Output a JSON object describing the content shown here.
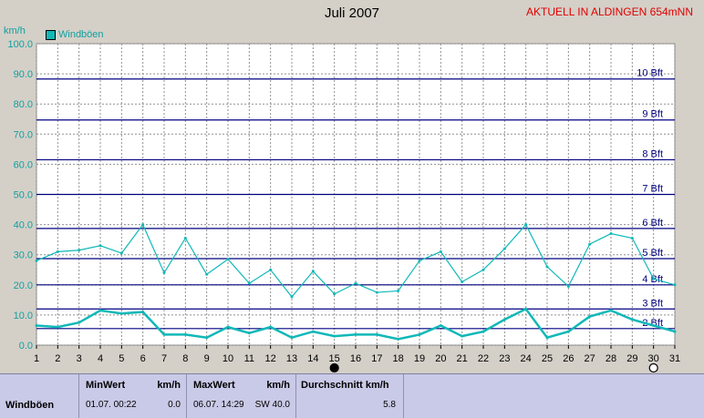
{
  "chart_data": {
    "type": "line",
    "title": "Juli 2007",
    "station": "AKTUELL IN ALDINGEN 654mNN",
    "ylabel": "km/h",
    "ylim": [
      0,
      100
    ],
    "yticks": [
      "0.0",
      "10.0",
      "20.0",
      "30.0",
      "40.0",
      "50.0",
      "60.0",
      "70.0",
      "80.0",
      "90.0",
      "100.0"
    ],
    "x": [
      1,
      2,
      3,
      4,
      5,
      6,
      7,
      8,
      9,
      10,
      11,
      12,
      13,
      14,
      15,
      16,
      17,
      18,
      19,
      20,
      21,
      22,
      23,
      24,
      25,
      26,
      27,
      28,
      29,
      30,
      31
    ],
    "xticks": [
      "1",
      "2",
      "3",
      "4",
      "5",
      "6",
      "7",
      "8",
      "9",
      "10",
      "11",
      "12",
      "13",
      "14",
      "15",
      "16",
      "17",
      "18",
      "19",
      "20",
      "21",
      "22",
      "23",
      "24",
      "25",
      "26",
      "27",
      "28",
      "29",
      "30",
      "31"
    ],
    "legend": [
      "Windböen"
    ],
    "series": [
      {
        "name": "Windböen",
        "color": "#10b8b8",
        "values": [
          28,
          31,
          31.5,
          33,
          30.5,
          40,
          24,
          35.5,
          23.5,
          28.5,
          20.5,
          25,
          16,
          24.5,
          17,
          20.5,
          17.5,
          18,
          28,
          31,
          21,
          25,
          32,
          40,
          26,
          19.5,
          33.5,
          37,
          35.5,
          22,
          20
        ]
      },
      {
        "color": "#10b8b8",
        "thick": true,
        "values": [
          6.5,
          6,
          7.5,
          11.5,
          10.5,
          11,
          3.5,
          3.5,
          2.5,
          6,
          4,
          6,
          2.5,
          4.5,
          3,
          3.5,
          3.5,
          2,
          3.5,
          6.5,
          3,
          4.5,
          8.5,
          12,
          2.5,
          4.5,
          9.5,
          11.5,
          8.5,
          6.5,
          4.5
        ]
      }
    ],
    "beaufort": [
      {
        "label": "2 Bft",
        "value": 5.5
      },
      {
        "label": "3 Bft",
        "value": 12
      },
      {
        "label": "4 Bft",
        "value": 20
      },
      {
        "label": "5 Bft",
        "value": 28.7
      },
      {
        "label": "6 Bft",
        "value": 38.7
      },
      {
        "label": "7 Bft",
        "value": 50
      },
      {
        "label": "8 Bft",
        "value": 61.5
      },
      {
        "label": "9 Bft",
        "value": 74.7
      },
      {
        "label": "10 Bft",
        "value": 88.3
      }
    ],
    "moon_markers": [
      {
        "x": 15,
        "type": "full-moon"
      },
      {
        "x": 30,
        "type": "new-moon"
      }
    ],
    "grid": true
  },
  "stats": {
    "row_label": "Windböen",
    "min_header": "MinWert",
    "min_unit": "km/h",
    "min_date": "01.07.  00:22",
    "min_value": "0.0",
    "max_header": "MaxWert",
    "max_unit": "km/h",
    "max_date": "06.07.  14:29",
    "max_dir_value": "SW 40.0",
    "avg_header": "Durchschnitt km/h",
    "avg_value": "5.8"
  }
}
